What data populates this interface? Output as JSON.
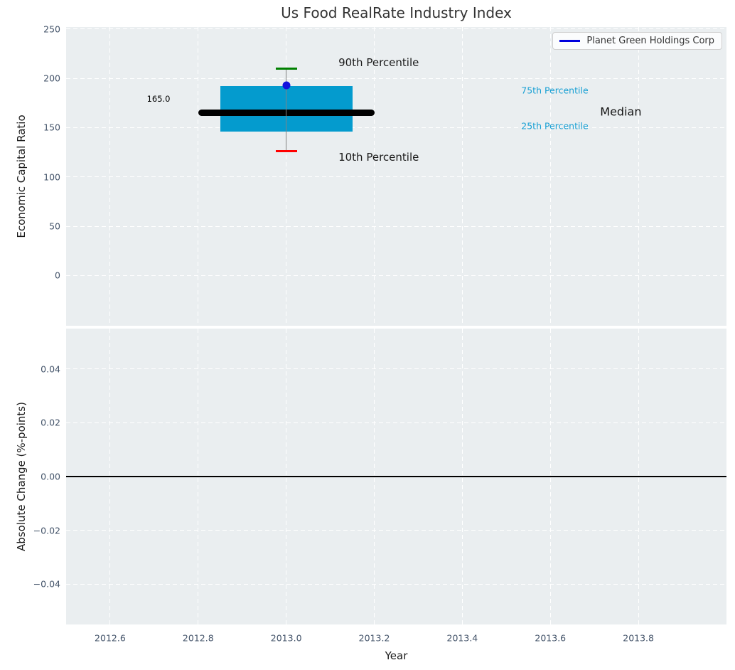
{
  "figure_title": "Us Food RealRate Industry Index",
  "chart_data": [
    {
      "type": "boxplot",
      "title": "Us Food RealRate Industry Index",
      "ylabel": "Economic Capital Ratio",
      "xlabel": "Year",
      "xlim": [
        2012.5,
        2014.0
      ],
      "ylim": [
        -51,
        252
      ],
      "grid": true,
      "legend": {
        "label": "Planet Green Holdings Corp",
        "position": "upper right",
        "line_color": "#0000dd"
      },
      "xticks": [
        {
          "v": 2012.6,
          "label": "2012.6"
        },
        {
          "v": 2012.8,
          "label": "2012.8"
        },
        {
          "v": 2013.0,
          "label": "2013.0"
        },
        {
          "v": 2013.2,
          "label": "2013.2"
        },
        {
          "v": 2013.4,
          "label": "2013.4"
        },
        {
          "v": 2013.6,
          "label": "2013.6"
        },
        {
          "v": 2013.8,
          "label": "2013.8"
        }
      ],
      "yticks": [
        {
          "v": 0,
          "label": "0"
        },
        {
          "v": 50,
          "label": "50"
        },
        {
          "v": 100,
          "label": "100"
        },
        {
          "v": 150,
          "label": "150"
        },
        {
          "v": 200,
          "label": "200"
        },
        {
          "v": 250,
          "label": "250"
        }
      ],
      "box": {
        "x": 2013.0,
        "p10": 126,
        "p25": 146,
        "median": 165,
        "p75": 192,
        "p90": 210,
        "box_halfwidth": 0.15,
        "median_halfwidth": 0.2,
        "cap_halfwidth": 0.024,
        "box_color": "#049bce",
        "median_color": "#000000",
        "whisker_color": "#828282",
        "cap90_color": "#008000",
        "cap10_color": "#ff0000"
      },
      "company_point": {
        "name": "Planet Green Holdings Corp",
        "x": 2013.0,
        "y": 193,
        "color": "#1212dd"
      },
      "annotations": [
        {
          "text": "90th Percentile",
          "x": 2013.21,
          "y": 216,
          "color": "#1a1a1a",
          "size": 15
        },
        {
          "text": "10th Percentile",
          "x": 2013.21,
          "y": 120,
          "color": "#1a1a1a",
          "size": 15
        },
        {
          "text": "75th Percentile",
          "x": 2013.61,
          "y": 188,
          "color": "#18a0d4",
          "size": 12.5
        },
        {
          "text": "25th Percentile",
          "x": 2013.61,
          "y": 152,
          "color": "#18a0d4",
          "size": 12.5
        },
        {
          "text": "Median",
          "x": 2013.76,
          "y": 166,
          "color": "#111111",
          "size": 16
        },
        {
          "text": "165.0",
          "x": 2012.71,
          "y": 179,
          "color": "#000000",
          "size": 11.5
        }
      ]
    },
    {
      "type": "line",
      "ylabel": "Absolute Change (%-points)",
      "xlabel": "Year",
      "xlim": [
        2012.5,
        2014.0
      ],
      "ylim": [
        -0.055,
        0.055
      ],
      "grid": true,
      "zero_line_y": 0.0,
      "xticks": [
        {
          "v": 2012.6,
          "label": "2012.6"
        },
        {
          "v": 2012.8,
          "label": "2012.8"
        },
        {
          "v": 2013.0,
          "label": "2013.0"
        },
        {
          "v": 2013.2,
          "label": "2013.2"
        },
        {
          "v": 2013.4,
          "label": "2013.4"
        },
        {
          "v": 2013.6,
          "label": "2013.6"
        },
        {
          "v": 2013.8,
          "label": "2013.8"
        }
      ],
      "yticks": [
        {
          "v": 0.04,
          "label": "0.04"
        },
        {
          "v": 0.02,
          "label": "0.02"
        },
        {
          "v": 0.0,
          "label": "0.00"
        },
        {
          "v": -0.02,
          "label": "−0.02"
        },
        {
          "v": -0.04,
          "label": "−0.04"
        }
      ]
    }
  ]
}
